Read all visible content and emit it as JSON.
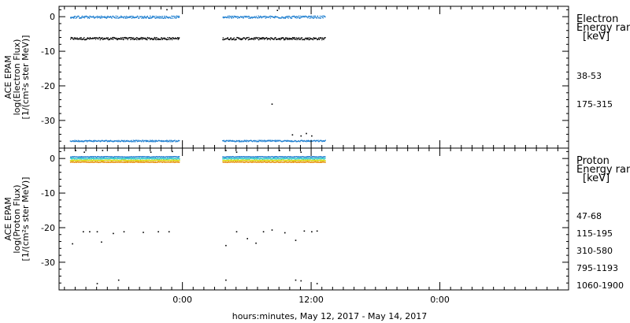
{
  "chart_data": [
    {
      "type": "scatter",
      "panel": "electron",
      "ylabel_lines": [
        "ACE EPAM",
        "log(Electron Flux)",
        "[1/(cm²s ster MeV)]"
      ],
      "ylim": [
        -38,
        3
      ],
      "yticks": [
        0,
        -10,
        -20,
        -30
      ],
      "legend": {
        "title_lines": [
          "Electron",
          "Energy range",
          "[keV]"
        ],
        "entries": [
          {
            "label": "38-53",
            "color": "#000000"
          },
          {
            "label": "175-315",
            "color": "#1f7fd0"
          }
        ]
      },
      "series": [
        {
          "name": "38-53",
          "color": "#000000",
          "segments": [
            {
              "x_start": -10.5,
              "x_end": -0.3,
              "level": -6.2,
              "jitter": 0.7
            },
            {
              "x_start": 3.7,
              "x_end": 13.3,
              "level": -6.2,
              "jitter": 0.7
            }
          ],
          "outliers": [
            [
              -1.5,
              2.2
            ],
            [
              8.3,
              -25.1
            ],
            [
              10.2,
              -34.0
            ],
            [
              11.0,
              -34.3
            ],
            [
              11.5,
              -33.6
            ],
            [
              12.0,
              -34.3
            ],
            [
              8.8,
              2.0
            ]
          ]
        },
        {
          "name": "175-315",
          "color": "#1f7fd0",
          "segments": [
            {
              "x_start": -10.5,
              "x_end": -0.3,
              "level": 0.0,
              "jitter": 0.7
            },
            {
              "x_start": -10.5,
              "x_end": -0.3,
              "level": -35.8,
              "jitter": 0.4
            },
            {
              "x_start": 3.7,
              "x_end": 13.3,
              "level": 0.0,
              "jitter": 0.7
            },
            {
              "x_start": 3.7,
              "x_end": 13.3,
              "level": -35.8,
              "jitter": 0.4
            }
          ]
        }
      ]
    },
    {
      "type": "scatter",
      "panel": "proton",
      "ylabel_lines": [
        "ACE EPAM",
        "log(Proton Flux)",
        "[1/(cm²s ster MeV)]"
      ],
      "ylim": [
        -38,
        3
      ],
      "yticks": [
        0,
        -10,
        -20,
        -30
      ],
      "legend": {
        "title_lines": [
          "Proton",
          "Energy range",
          "[keV]"
        ],
        "entries": [
          {
            "label": "47-68",
            "color": "#000000"
          },
          {
            "label": "115-195",
            "color": "#1f7fd0"
          },
          {
            "label": "310-580",
            "color": "#22c8c8"
          },
          {
            "label": "795-1193",
            "color": "#d6d600"
          },
          {
            "label": "1060-1900",
            "color": "#e68a00"
          }
        ]
      },
      "series": [
        {
          "name": "47-68",
          "color": "#000000",
          "segments": [],
          "outliers": [
            [
              -10.0,
              2.5
            ],
            [
              -9.2,
              2.0
            ],
            [
              -7.5,
              2.5
            ],
            [
              -3.0,
              2.0
            ],
            [
              -1.0,
              2.2
            ],
            [
              4.0,
              2.5
            ],
            [
              5.0,
              2.0
            ],
            [
              9.0,
              2.5
            ],
            [
              11.0,
              2.0
            ],
            [
              -10.3,
              -24.5
            ],
            [
              -9.3,
              -21.0
            ],
            [
              -8.7,
              -21.0
            ],
            [
              -8.0,
              -21.0
            ],
            [
              -7.6,
              -24.0
            ],
            [
              -6.5,
              -21.5
            ],
            [
              -5.5,
              -21.0
            ],
            [
              -3.7,
              -21.2
            ],
            [
              -2.3,
              -21.0
            ],
            [
              -1.3,
              -21.0
            ],
            [
              4.0,
              -25.0
            ],
            [
              5.0,
              -21.0
            ],
            [
              6.0,
              -23.0
            ],
            [
              6.8,
              -24.3
            ],
            [
              7.5,
              -21.0
            ],
            [
              8.3,
              -20.5
            ],
            [
              9.5,
              -21.3
            ],
            [
              10.5,
              -23.5
            ],
            [
              11.3,
              -20.8
            ],
            [
              12.0,
              -21.0
            ],
            [
              12.5,
              -20.8
            ],
            [
              -8.0,
              -36.0
            ],
            [
              -6.0,
              -35.0
            ],
            [
              4.0,
              -35.0
            ],
            [
              10.5,
              -35.0
            ],
            [
              11.0,
              -35.2
            ],
            [
              12.5,
              -36.0
            ]
          ]
        },
        {
          "name": "115-195",
          "color": "#1f7fd0",
          "segments": [
            {
              "x_start": -10.5,
              "x_end": -0.3,
              "level": 0.6,
              "jitter": 0.2
            },
            {
              "x_start": 3.7,
              "x_end": 13.3,
              "level": 0.6,
              "jitter": 0.2
            }
          ]
        },
        {
          "name": "310-580",
          "color": "#22c8c8",
          "segments": [
            {
              "x_start": -10.5,
              "x_end": -0.3,
              "level": 0.1,
              "jitter": 0.2
            },
            {
              "x_start": 3.7,
              "x_end": 13.3,
              "level": 0.1,
              "jitter": 0.2
            }
          ]
        },
        {
          "name": "795-1193",
          "color": "#d6d600",
          "segments": [
            {
              "x_start": -10.5,
              "x_end": -0.3,
              "level": -0.4,
              "jitter": 0.2
            },
            {
              "x_start": 3.7,
              "x_end": 13.3,
              "level": -0.4,
              "jitter": 0.2
            }
          ]
        },
        {
          "name": "1060-1900",
          "color": "#e68a00",
          "segments": [
            {
              "x_start": -10.5,
              "x_end": -0.3,
              "level": -0.9,
              "jitter": 0.2
            },
            {
              "x_start": 3.7,
              "x_end": 13.3,
              "level": -0.9,
              "jitter": 0.2
            }
          ]
        }
      ]
    }
  ],
  "x_axis": {
    "xlim": [
      -11.5,
      36
    ],
    "major_ticks": [
      {
        "x": 0,
        "label": "0:00"
      },
      {
        "x": 12,
        "label": "12:00"
      },
      {
        "x": 24,
        "label": "0:00"
      }
    ],
    "xlabel": "hours:minutes, May 12, 2017 - May 14, 2017"
  }
}
